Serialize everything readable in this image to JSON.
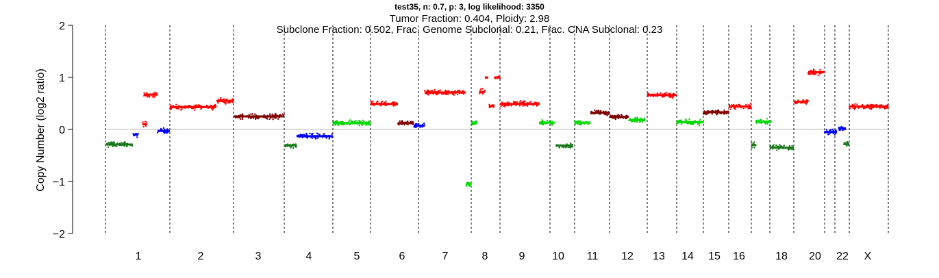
{
  "chart_data": {
    "type": "scatter",
    "title": "test35, n: 0.7, p: 3, log likelihood: 3350",
    "subtitle_line1": "Tumor Fraction: 0.404, Ploidy: 2.98",
    "subtitle_line2": "Subclone Fraction: 0.502, Frac. Genome Subclonal: 0.21, Frac. CNA Subclonal: 0.23",
    "xlabel": "",
    "ylabel": "Copy Number (log2 ratio)",
    "ylim": [
      -2,
      2
    ],
    "yticks": [
      "2",
      "1",
      "0",
      "−1",
      "−2"
    ],
    "ytick_values": [
      2,
      1,
      0,
      -1,
      -2
    ],
    "reference_line": 0,
    "chromosome_labels": [
      "1",
      "2",
      "3",
      "4",
      "5",
      "6",
      "7",
      "8",
      "9",
      "10",
      "11",
      "12",
      "13",
      "14",
      "15",
      "16",
      "18",
      "20",
      "22",
      "X"
    ],
    "chromosome_label_positions": [
      {
        "label": "1",
        "at": 202
      },
      {
        "label": "2",
        "at": 293
      },
      {
        "label": "3",
        "at": 377
      },
      {
        "label": "4",
        "at": 451
      },
      {
        "label": "5",
        "at": 521
      },
      {
        "label": "6",
        "at": 587
      },
      {
        "label": "7",
        "at": 650
      },
      {
        "label": "8",
        "at": 708
      },
      {
        "label": "9",
        "at": 762
      },
      {
        "label": "10",
        "at": 815
      },
      {
        "label": "11",
        "at": 865
      },
      {
        "label": "12",
        "at": 916
      },
      {
        "label": "13",
        "at": 962
      },
      {
        "label": "14",
        "at": 1004
      },
      {
        "label": "15",
        "at": 1043
      },
      {
        "label": "16",
        "at": 1079
      },
      {
        "label": "18",
        "at": 1141
      },
      {
        "label": "20",
        "at": 1190
      },
      {
        "label": "22",
        "at": 1230
      },
      {
        "label": "X",
        "at": 1267
      }
    ],
    "chromosome_boundaries": [
      154,
      248,
      341,
      415,
      486,
      541,
      611,
      688,
      730,
      803,
      839,
      890,
      945,
      988,
      1027,
      1064,
      1097,
      1124,
      1159,
      1204,
      1219,
      1240,
      1297
    ],
    "colors": {
      "hetd": "#1a7a1a",
      "neutral": "#00cc00",
      "gain": "#800000",
      "amp": "#ff0000",
      "homd": "#0000ff",
      "segment_gain": "#800000",
      "segment_amp": "#ff0000",
      "segment_neutral": "#00dd00",
      "segment_hetd": "#1a7a1a",
      "segment_homd": "#0000ff",
      "axis": "#000000",
      "boundary": "#000000",
      "zero_line": "#bbbbbb"
    },
    "segments": [
      {
        "chr": "1",
        "start": 154,
        "end": 194,
        "value": -0.29,
        "state": "hetd"
      },
      {
        "chr": "1",
        "start": 194,
        "end": 202,
        "value": -0.1,
        "state": "homd"
      },
      {
        "chr": "1",
        "start": 208,
        "end": 214,
        "value": 0.1,
        "state": "amp"
      },
      {
        "chr": "1",
        "start": 210,
        "end": 230,
        "value": 0.67,
        "state": "amp"
      },
      {
        "chr": "1",
        "start": 230,
        "end": 248,
        "value": -0.03,
        "state": "homd"
      },
      {
        "chr": "2",
        "start": 248,
        "end": 316,
        "value": 0.43,
        "state": "amp"
      },
      {
        "chr": "2",
        "start": 316,
        "end": 341,
        "value": 0.55,
        "state": "amp"
      },
      {
        "chr": "3",
        "start": 341,
        "end": 415,
        "value": 0.25,
        "state": "gain"
      },
      {
        "chr": "4",
        "start": 415,
        "end": 433,
        "value": -0.31,
        "state": "hetd"
      },
      {
        "chr": "4",
        "start": 433,
        "end": 486,
        "value": -0.13,
        "state": "homd"
      },
      {
        "chr": "5",
        "start": 486,
        "end": 541,
        "value": 0.12,
        "state": "neutral"
      },
      {
        "chr": "6",
        "start": 541,
        "end": 581,
        "value": 0.49,
        "state": "amp"
      },
      {
        "chr": "6",
        "start": 581,
        "end": 604,
        "value": 0.12,
        "state": "gain"
      },
      {
        "chr": "6",
        "start": 604,
        "end": 620,
        "value": 0.07,
        "state": "homd"
      },
      {
        "chr": "7",
        "start": 620,
        "end": 680,
        "value": 0.71,
        "state": "amp"
      },
      {
        "chr": "8",
        "start": 680,
        "end": 688,
        "value": -1.05,
        "state": "neutral"
      },
      {
        "chr": "8",
        "start": 688,
        "end": 696,
        "value": 0.12,
        "state": "neutral"
      },
      {
        "chr": "8",
        "start": 700,
        "end": 708,
        "value": 0.72,
        "state": "amp"
      },
      {
        "chr": "8",
        "start": 708,
        "end": 712,
        "value": 1.0,
        "state": "amp"
      },
      {
        "chr": "8",
        "start": 714,
        "end": 722,
        "value": 0.45,
        "state": "amp"
      },
      {
        "chr": "8",
        "start": 722,
        "end": 730,
        "value": 1.0,
        "state": "amp"
      },
      {
        "chr": "9",
        "start": 730,
        "end": 788,
        "value": 0.49,
        "state": "amp"
      },
      {
        "chr": "10",
        "start": 788,
        "end": 810,
        "value": 0.13,
        "state": "neutral"
      },
      {
        "chr": "10",
        "start": 812,
        "end": 836,
        "value": -0.31,
        "state": "hetd"
      },
      {
        "chr": "11",
        "start": 839,
        "end": 862,
        "value": 0.13,
        "state": "neutral"
      },
      {
        "chr": "11",
        "start": 862,
        "end": 890,
        "value": 0.32,
        "state": "gain"
      },
      {
        "chr": "12",
        "start": 890,
        "end": 918,
        "value": 0.24,
        "state": "gain"
      },
      {
        "chr": "12",
        "start": 918,
        "end": 942,
        "value": 0.18,
        "state": "neutral"
      },
      {
        "chr": "13",
        "start": 945,
        "end": 988,
        "value": 0.66,
        "state": "amp"
      },
      {
        "chr": "14",
        "start": 988,
        "end": 1027,
        "value": 0.14,
        "state": "neutral"
      },
      {
        "chr": "15",
        "start": 1027,
        "end": 1064,
        "value": 0.33,
        "state": "gain"
      },
      {
        "chr": "16",
        "start": 1064,
        "end": 1097,
        "value": 0.44,
        "state": "amp"
      },
      {
        "chr": "17",
        "start": 1097,
        "end": 1104,
        "value": -0.3,
        "state": "hetd"
      },
      {
        "chr": "17",
        "start": 1104,
        "end": 1126,
        "value": 0.15,
        "state": "neutral"
      },
      {
        "chr": "18",
        "start": 1124,
        "end": 1159,
        "value": -0.35,
        "state": "hetd"
      },
      {
        "chr": "19",
        "start": 1159,
        "end": 1180,
        "value": 0.53,
        "state": "amp"
      },
      {
        "chr": "20",
        "start": 1180,
        "end": 1204,
        "value": 1.1,
        "state": "amp"
      },
      {
        "chr": "21",
        "start": 1204,
        "end": 1222,
        "value": -0.05,
        "state": "homd"
      },
      {
        "chr": "22",
        "start": 1224,
        "end": 1235,
        "value": 0.02,
        "state": "homd"
      },
      {
        "chr": "22",
        "start": 1232,
        "end": 1240,
        "value": -0.27,
        "state": "hetd"
      },
      {
        "chr": "X",
        "start": 1240,
        "end": 1297,
        "value": 0.44,
        "state": "amp"
      }
    ]
  }
}
